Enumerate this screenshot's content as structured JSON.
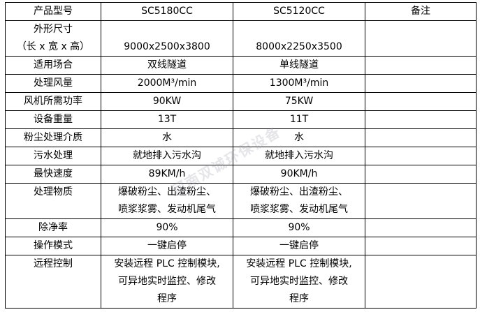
{
  "header": [
    "产品型号",
    "SC5180CC",
    "SC5120CC",
    "备注"
  ],
  "rows": [
    {
      "label_lines": [
        "外形尺寸",
        "（长 x 宽 x 高）"
      ],
      "a": "9000x2500x3800",
      "b": "8000x2250x3500",
      "note": ""
    },
    {
      "label": "适用场合",
      "a": "双线隧道",
      "b": "单线隧道",
      "note": ""
    },
    {
      "label": "处理风量",
      "a": "2000M³/min",
      "b": "1300M³/min",
      "note": ""
    },
    {
      "label": "风机所需功率",
      "a": "90KW",
      "b": "75KW",
      "note": ""
    },
    {
      "label": "设备重量",
      "a": "13T",
      "b": "11T",
      "note": ""
    },
    {
      "label": "粉尘处理介质",
      "a": "水",
      "b": "水",
      "note": ""
    },
    {
      "label": "污水处理",
      "a": "就地排入污水沟",
      "b": "就地排入污水沟",
      "note": ""
    },
    {
      "label": "最快速度",
      "a": "89KM/h",
      "b": "90KM/h",
      "note": ""
    },
    {
      "label": "处理物质",
      "a_lines": [
        "爆破粉尘、出渣粉尘、",
        "喷浆浆雾、发动机尾气"
      ],
      "b_lines": [
        "爆破粉尘、出渣粉尘、",
        "喷浆浆雾、发动机尾气"
      ],
      "note": ""
    },
    {
      "label": "除净率",
      "a": "90%",
      "b": "90%",
      "note": ""
    },
    {
      "label": "操作模式",
      "a": "一键启停",
      "b": "一键启停",
      "note": ""
    },
    {
      "label": "远程控制",
      "a_lines": [
        "安装远程 PLC 控制模块,",
        "可异地实时监控、修改",
        "程序"
      ],
      "b_lines": [
        "安装远程 PLC 控制模块,",
        "可异地实时监控、修改",
        "程序"
      ],
      "note": ""
    }
  ],
  "watermark": "河南双诚环保设备"
}
